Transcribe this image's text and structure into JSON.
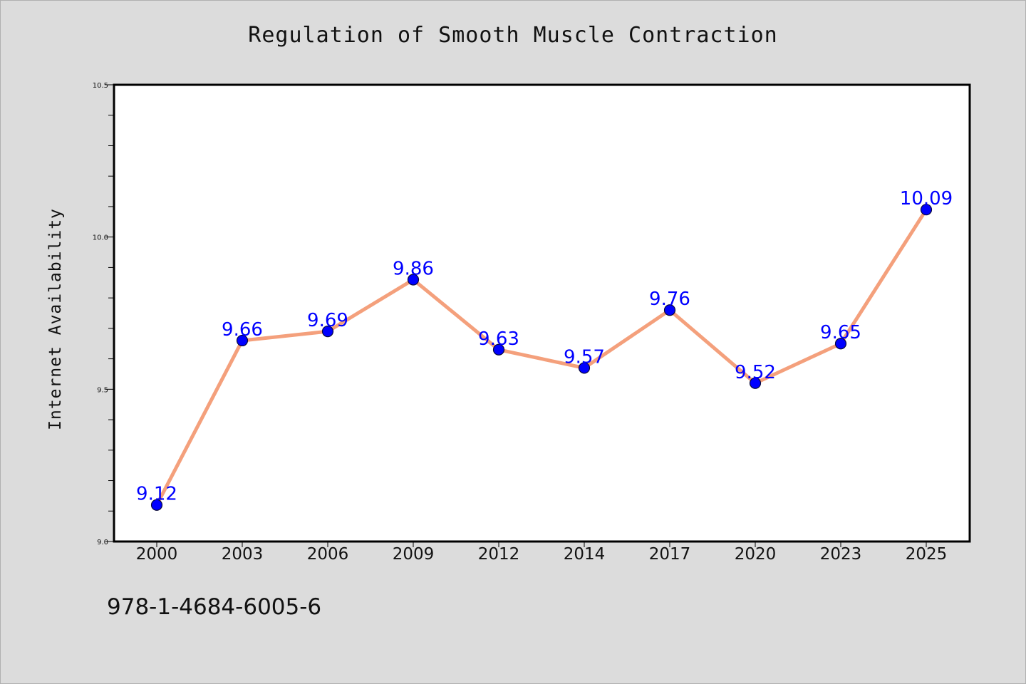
{
  "chart_data": {
    "type": "line",
    "title": "Regulation of Smooth Muscle Contraction",
    "xlabel": "",
    "ylabel": "Internet Availability",
    "categories": [
      "2000",
      "2003",
      "2006",
      "2009",
      "2012",
      "2014",
      "2017",
      "2020",
      "2023",
      "2025"
    ],
    "series": [
      {
        "values": [
          9.12,
          9.66,
          9.69,
          9.86,
          9.63,
          9.57,
          9.76,
          9.52,
          9.65,
          10.09
        ],
        "data_labels": [
          "9.12",
          "9.66",
          "9.69",
          "9.86",
          "9.63",
          "9.57",
          "9.76",
          "9.52",
          "9.65",
          "10.09"
        ]
      }
    ],
    "ylim": [
      9.0,
      10.5
    ],
    "yticks": [
      "9.0",
      "9.5",
      "10.0",
      "10.5"
    ],
    "yticks_values": [
      9.0,
      9.5,
      10.0,
      10.5
    ],
    "grid": false,
    "colors": {
      "line": "#f4a07c",
      "marker": "#0000ff",
      "marker_edge": "#0a0a3a",
      "data_label": "#0000ff",
      "plot_background": "#ffffff",
      "figure_background": "#dcdcdc"
    }
  },
  "footer_text": "978-1-4684-6005-6"
}
